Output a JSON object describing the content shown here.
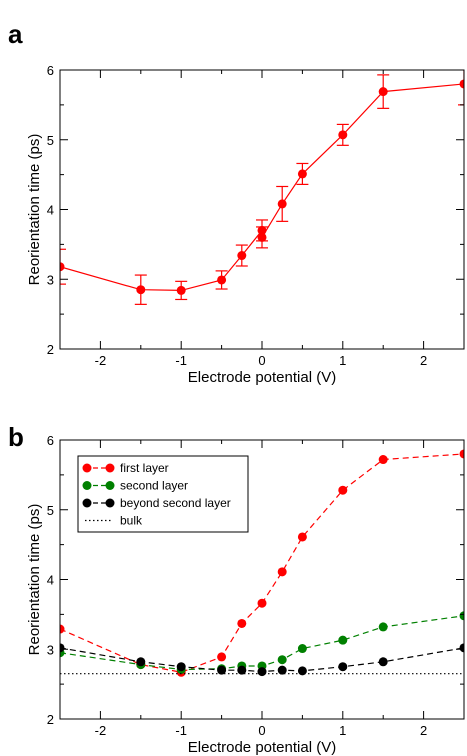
{
  "chart_data": [
    {
      "panel_label": "a",
      "type": "line",
      "xlabel": "Electrode potential (V)",
      "ylabel": "Reorientation time (ps)",
      "xlim": [
        -2.5,
        2.5
      ],
      "ylim": [
        2,
        6
      ],
      "xticks": [
        -2,
        -1,
        0,
        1,
        2
      ],
      "yticks": [
        2,
        3,
        4,
        5,
        6
      ],
      "grid": false,
      "series": [
        {
          "color": "#ff0000",
          "marker": "circle",
          "line": "solid",
          "x": [
            -2.5,
            -1.5,
            -1.0,
            -0.5,
            -0.25,
            0.0,
            0.0,
            0.25,
            0.5,
            1.0,
            1.5,
            2.5
          ],
          "y": [
            3.18,
            2.85,
            2.84,
            2.99,
            3.34,
            3.7,
            3.6,
            4.08,
            4.51,
            5.07,
            5.69,
            5.8
          ],
          "err": [
            0.25,
            0.21,
            0.13,
            0.13,
            0.15,
            0.15,
            0.15,
            0.25,
            0.15,
            0.15,
            0.24,
            0.3
          ]
        }
      ]
    },
    {
      "panel_label": "b",
      "type": "line",
      "xlabel": "Electrode potential (V)",
      "ylabel": "Reorientation time (ps)",
      "xlim": [
        -2.5,
        2.5
      ],
      "ylim": [
        2,
        6
      ],
      "xticks": [
        -2,
        -1,
        0,
        1,
        2
      ],
      "yticks": [
        2,
        3,
        4,
        5,
        6
      ],
      "grid": false,
      "legend_position": "top-left",
      "series": [
        {
          "name": "first layer",
          "color": "#ff0000",
          "marker": "circle",
          "line": "dashed",
          "x": [
            -2.5,
            -1.5,
            -1.0,
            -0.5,
            -0.25,
            0.0,
            0.25,
            0.5,
            1.0,
            1.5,
            2.5
          ],
          "y": [
            3.29,
            2.78,
            2.67,
            2.89,
            3.37,
            3.66,
            4.11,
            4.61,
            5.28,
            5.72,
            5.8
          ]
        },
        {
          "name": "second layer",
          "color": "#008000",
          "marker": "circle",
          "line": "dashed",
          "x": [
            -2.5,
            -1.5,
            -1.0,
            -0.5,
            -0.25,
            0.0,
            0.25,
            0.5,
            1.0,
            1.5,
            2.5
          ],
          "y": [
            2.95,
            2.78,
            2.71,
            2.72,
            2.76,
            2.76,
            2.85,
            3.01,
            3.13,
            3.32,
            3.48
          ]
        },
        {
          "name": "beyond second layer",
          "color": "#000000",
          "marker": "circle",
          "line": "dashed",
          "x": [
            -2.5,
            -1.5,
            -1.0,
            -0.5,
            -0.25,
            0.0,
            0.25,
            0.5,
            1.0,
            1.5,
            2.5
          ],
          "y": [
            3.02,
            2.82,
            2.75,
            2.7,
            2.7,
            2.68,
            2.7,
            2.69,
            2.75,
            2.82,
            3.02
          ]
        },
        {
          "name": "bulk",
          "color": "#000000",
          "marker": "none",
          "line": "dotted",
          "x": [
            -2.5,
            2.5
          ],
          "y": [
            2.65,
            2.65
          ]
        }
      ]
    }
  ]
}
